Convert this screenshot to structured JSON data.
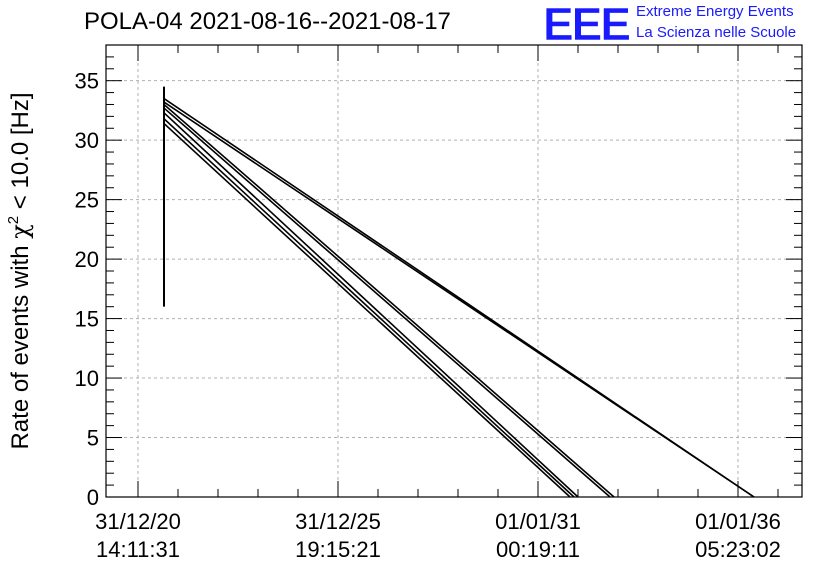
{
  "header": {
    "title": "POLA-04 2021-08-16--2021-08-17",
    "logo_text": "EEE",
    "logo_line1": "Extreme Energy Events",
    "logo_line2": "La Scienza nelle Scuole"
  },
  "colors": {
    "logo": "#1a1aff",
    "line": "#000000",
    "grid": "#b0b0b0"
  },
  "chart_data": {
    "type": "line",
    "title": "POLA-04 2021-08-16--2021-08-17",
    "ylabel_main": "Rate of events with ",
    "ylabel_chi": "χ",
    "ylabel_sup": "2",
    "ylabel_tail": " < 10.0 [Hz]",
    "ylim": [
      0,
      38
    ],
    "yticks": [
      0,
      5,
      10,
      15,
      20,
      25,
      30,
      35
    ],
    "xlim": [
      0,
      17.4
    ],
    "xticks": [
      {
        "x": 0.8,
        "label1": "31/12/20",
        "label2": "14:11:31"
      },
      {
        "x": 5.8,
        "label1": "31/12/25",
        "label2": "19:15:21"
      },
      {
        "x": 10.8,
        "label1": "01/01/31",
        "label2": "00:19:11"
      },
      {
        "x": 15.8,
        "label1": "01/01/36",
        "label2": "05:23:02"
      }
    ],
    "grid": true,
    "spike": {
      "x": 1.45,
      "y_from": 16,
      "y_to": 34.5
    },
    "series": [
      {
        "x": [
          1.45,
          16.2
        ],
        "y": [
          33.5,
          0
        ]
      },
      {
        "x": [
          1.45,
          16.2
        ],
        "y": [
          33.2,
          0
        ]
      },
      {
        "x": [
          1.45,
          12.7
        ],
        "y": [
          33.0,
          0
        ]
      },
      {
        "x": [
          1.45,
          12.6
        ],
        "y": [
          32.7,
          0
        ]
      },
      {
        "x": [
          1.45,
          11.8
        ],
        "y": [
          32.3,
          0
        ]
      },
      {
        "x": [
          1.45,
          11.7
        ],
        "y": [
          31.8,
          0
        ]
      },
      {
        "x": [
          1.45,
          11.6
        ],
        "y": [
          31.4,
          0
        ]
      }
    ]
  }
}
